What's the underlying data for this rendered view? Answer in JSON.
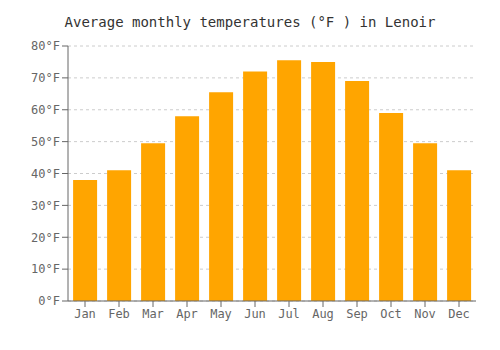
{
  "chart_data": {
    "type": "bar",
    "title": "Average monthly temperatures (°F ) in Lenoir",
    "categories": [
      "Jan",
      "Feb",
      "Mar",
      "Apr",
      "May",
      "Jun",
      "Jul",
      "Aug",
      "Sep",
      "Oct",
      "Nov",
      "Dec"
    ],
    "values": [
      38,
      41,
      49.5,
      58,
      65.5,
      72,
      75.5,
      75,
      69,
      59,
      49.5,
      41
    ],
    "color": "#FFA500",
    "ylim": [
      0,
      80
    ],
    "yticks": [
      {
        "value": 0,
        "label": "0°F"
      },
      {
        "value": 10,
        "label": "10°F"
      },
      {
        "value": 20,
        "label": "20°F"
      },
      {
        "value": 30,
        "label": "30°F"
      },
      {
        "value": 40,
        "label": "40°F"
      },
      {
        "value": 50,
        "label": "50°F"
      },
      {
        "value": 60,
        "label": "60°F"
      },
      {
        "value": 70,
        "label": "70°F"
      },
      {
        "value": 80,
        "label": "80°F"
      }
    ],
    "grid": true
  }
}
